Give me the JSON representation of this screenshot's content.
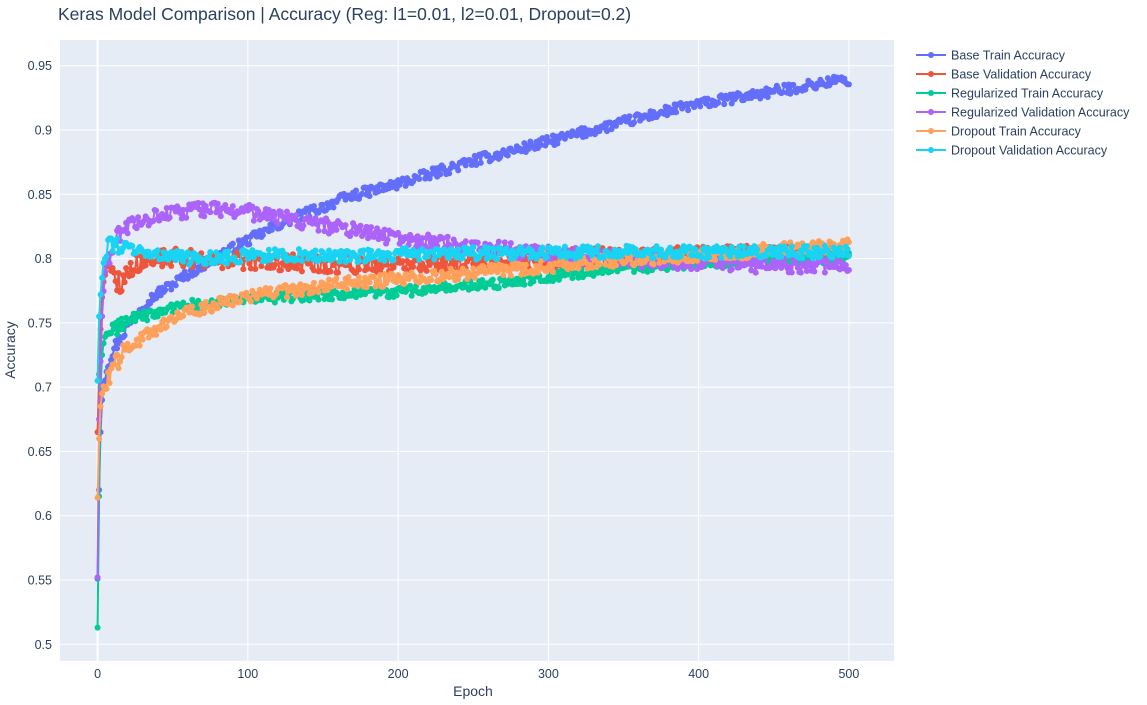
{
  "chart_data": {
    "type": "line",
    "title": "Keras Model Comparison |  Accuracy (Reg: l1=0.01, l2=0.01, Dropout=0.2)",
    "xlabel": "Epoch",
    "ylabel": "Accuracy",
    "xlim": [
      -25,
      530
    ],
    "ylim": [
      0.487,
      0.97
    ],
    "xticks": [
      0,
      100,
      200,
      300,
      400,
      500
    ],
    "yticks": [
      0.5,
      0.55,
      0.6,
      0.65,
      0.7,
      0.75,
      0.8,
      0.85,
      0.9,
      0.95
    ],
    "ytick_labels": [
      "0.5",
      "0.55",
      "0.6",
      "0.65",
      "0.7",
      "0.75",
      "0.8",
      "0.85",
      "0.9",
      "0.95"
    ],
    "grid": true,
    "legend_position": "right",
    "marker": "circle",
    "series": [
      {
        "name": "Base Train Accuracy",
        "color": "#636efa",
        "x": [
          0,
          1,
          2,
          3,
          4,
          6,
          8,
          10,
          15,
          20,
          25,
          30,
          40,
          50,
          60,
          70,
          80,
          90,
          100,
          110,
          120,
          130,
          140,
          150,
          160,
          170,
          180,
          190,
          200,
          210,
          220,
          230,
          240,
          250,
          260,
          270,
          280,
          290,
          300,
          310,
          320,
          330,
          340,
          350,
          360,
          370,
          380,
          390,
          400,
          410,
          420,
          430,
          440,
          450,
          460,
          470,
          480,
          490,
          500
        ],
        "y": [
          0.551,
          0.62,
          0.665,
          0.69,
          0.705,
          0.715,
          0.722,
          0.728,
          0.738,
          0.748,
          0.756,
          0.764,
          0.773,
          0.78,
          0.788,
          0.795,
          0.802,
          0.808,
          0.814,
          0.82,
          0.826,
          0.831,
          0.836,
          0.84,
          0.845,
          0.849,
          0.852,
          0.855,
          0.858,
          0.862,
          0.865,
          0.869,
          0.872,
          0.876,
          0.879,
          0.882,
          0.885,
          0.888,
          0.891,
          0.894,
          0.897,
          0.9,
          0.903,
          0.906,
          0.909,
          0.912,
          0.915,
          0.918,
          0.92,
          0.922,
          0.924,
          0.926,
          0.928,
          0.93,
          0.932,
          0.934,
          0.936,
          0.938,
          0.939
        ],
        "noise": 0.004
      },
      {
        "name": "Base Validation Accuracy",
        "color": "#ef553b",
        "x": [
          0,
          1,
          2,
          3,
          4,
          6,
          8,
          10,
          12,
          15,
          20,
          25,
          30,
          40,
          50,
          60,
          70,
          80,
          90,
          100,
          120,
          140,
          160,
          180,
          200,
          220,
          240,
          260,
          280,
          300,
          320,
          340,
          360,
          380,
          400,
          420,
          440,
          460,
          480,
          500
        ],
        "y": [
          0.665,
          0.71,
          0.745,
          0.77,
          0.785,
          0.795,
          0.798,
          0.792,
          0.785,
          0.78,
          0.79,
          0.795,
          0.798,
          0.8,
          0.801,
          0.8,
          0.8,
          0.799,
          0.799,
          0.798,
          0.797,
          0.796,
          0.795,
          0.795,
          0.795,
          0.796,
          0.797,
          0.798,
          0.799,
          0.8,
          0.801,
          0.802,
          0.803,
          0.803,
          0.803,
          0.803,
          0.803,
          0.803,
          0.803,
          0.803
        ],
        "noise": 0.007
      },
      {
        "name": "Regularized Train Accuracy",
        "color": "#00cc96",
        "x": [
          0,
          1,
          2,
          3,
          4,
          6,
          8,
          10,
          15,
          20,
          30,
          40,
          50,
          60,
          80,
          100,
          120,
          140,
          160,
          180,
          200,
          220,
          240,
          260,
          280,
          300,
          320,
          340,
          360,
          380,
          400,
          420,
          440,
          460,
          480,
          500
        ],
        "y": [
          0.513,
          0.615,
          0.7,
          0.725,
          0.735,
          0.74,
          0.742,
          0.744,
          0.748,
          0.752,
          0.755,
          0.758,
          0.761,
          0.764,
          0.766,
          0.768,
          0.77,
          0.771,
          0.772,
          0.773,
          0.774,
          0.776,
          0.778,
          0.78,
          0.783,
          0.786,
          0.789,
          0.791,
          0.793,
          0.795,
          0.797,
          0.798,
          0.799,
          0.8,
          0.8,
          0.801
        ],
        "noise": 0.004
      },
      {
        "name": "Regularized Validation Accuracy",
        "color": "#ab63fa",
        "x": [
          0,
          1,
          2,
          3,
          4,
          6,
          8,
          10,
          15,
          20,
          30,
          40,
          50,
          60,
          70,
          80,
          90,
          100,
          110,
          120,
          140,
          160,
          180,
          200,
          220,
          240,
          260,
          280,
          300,
          320,
          340,
          360,
          380,
          400,
          420,
          440,
          460,
          480,
          500
        ],
        "y": [
          0.552,
          0.675,
          0.72,
          0.755,
          0.775,
          0.79,
          0.8,
          0.808,
          0.818,
          0.825,
          0.83,
          0.833,
          0.835,
          0.837,
          0.838,
          0.838,
          0.837,
          0.836,
          0.834,
          0.832,
          0.828,
          0.824,
          0.82,
          0.816,
          0.813,
          0.81,
          0.808,
          0.806,
          0.804,
          0.802,
          0.8,
          0.799,
          0.798,
          0.797,
          0.796,
          0.795,
          0.794,
          0.794,
          0.793
        ],
        "noise": 0.006
      },
      {
        "name": "Dropout Train Accuracy",
        "color": "#ffa15a",
        "x": [
          0,
          1,
          2,
          3,
          4,
          6,
          8,
          10,
          15,
          20,
          30,
          40,
          50,
          60,
          80,
          100,
          120,
          140,
          160,
          180,
          200,
          220,
          240,
          260,
          280,
          300,
          320,
          340,
          360,
          380,
          400,
          420,
          440,
          460,
          480,
          500
        ],
        "y": [
          0.614,
          0.66,
          0.685,
          0.695,
          0.7,
          0.705,
          0.71,
          0.715,
          0.723,
          0.73,
          0.738,
          0.745,
          0.752,
          0.758,
          0.765,
          0.77,
          0.774,
          0.777,
          0.78,
          0.782,
          0.784,
          0.786,
          0.788,
          0.79,
          0.792,
          0.794,
          0.796,
          0.798,
          0.8,
          0.801,
          0.802,
          0.804,
          0.806,
          0.808,
          0.809,
          0.81
        ],
        "noise": 0.005
      },
      {
        "name": "Dropout Validation Accuracy",
        "color": "#19d3f3",
        "x": [
          0,
          1,
          2,
          3,
          4,
          6,
          8,
          10,
          15,
          20,
          30,
          40,
          60,
          80,
          100,
          120,
          140,
          160,
          180,
          200,
          220,
          240,
          260,
          280,
          300,
          320,
          340,
          360,
          380,
          400,
          420,
          440,
          460,
          480,
          500
        ],
        "y": [
          0.705,
          0.755,
          0.772,
          0.785,
          0.795,
          0.805,
          0.812,
          0.812,
          0.81,
          0.808,
          0.806,
          0.804,
          0.8,
          0.8,
          0.802,
          0.803,
          0.803,
          0.802,
          0.802,
          0.803,
          0.804,
          0.804,
          0.804,
          0.804,
          0.804,
          0.805,
          0.805,
          0.805,
          0.805,
          0.805,
          0.805,
          0.805,
          0.805,
          0.805,
          0.805
        ],
        "noise": 0.005
      }
    ]
  }
}
